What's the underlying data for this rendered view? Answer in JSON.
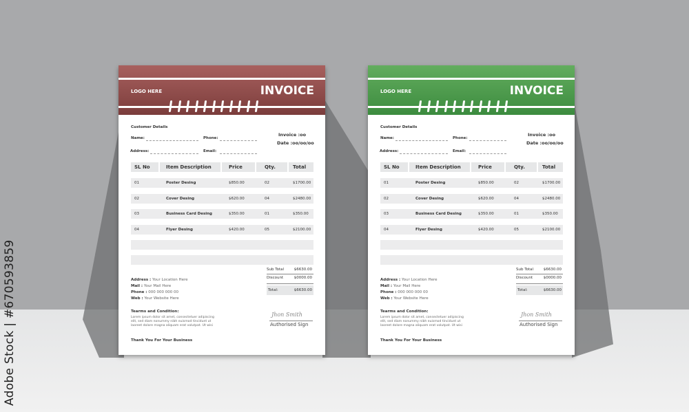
{
  "watermark": "Adobe Stock | #670593859",
  "themes": [
    {
      "name": "red",
      "light": "#a8605e",
      "dark": "#7b3d3c"
    },
    {
      "name": "green",
      "light": "#63ad5e",
      "dark": "#3c8b3f"
    }
  ],
  "invoice": {
    "logo": "LOGO HERE",
    "title": "INVOICE",
    "customer_details": "Customer Details",
    "name_label": "Name:",
    "phone_label": "Phone:",
    "address_label": "Address:",
    "email_label": "Email:",
    "invoice_no": "Invoice :oo",
    "date": "Date :oo/oo/oo",
    "columns": [
      "SL No",
      "Item Description",
      "Price",
      "Qty.",
      "Total"
    ],
    "rows": [
      {
        "sl": "01",
        "item": "Poster Desing",
        "price": "$850.00",
        "qty": "02",
        "total": "$1700.00"
      },
      {
        "sl": "02",
        "item": "Cover Desing",
        "price": "$620.00",
        "qty": "04",
        "total": "$2480.00"
      },
      {
        "sl": "03",
        "item": "Business Card Desing",
        "price": "$350.00",
        "qty": "01",
        "total": "$350.00"
      },
      {
        "sl": "04",
        "item": "Flyer Desing",
        "price": "$420.00",
        "qty": "05",
        "total": "$2100.00"
      }
    ],
    "subtotal_label": "Sub Total",
    "subtotal": "$6630.00",
    "discount_label": "Discount",
    "discount": "$0000.00",
    "total_label": "Total:",
    "total": "$6630.00",
    "contact": {
      "address_label": "Address :",
      "address": "Your Location Here",
      "mail_label": "Mail :",
      "mail": "Your Mail Here",
      "phone_label": "Phone :",
      "phone": "000 000 000 00",
      "web_label": "Web :",
      "web": "Your Website Here"
    },
    "terms_title": "Tearms and Condition:",
    "terms_lines": [
      "Lorem ipsum dolor sit amet, consectetuer adipiscing",
      "elit, sed diam nonummy nibh euismod tincidunt ut",
      "laoreet dolore magna aliquam erat volutpat. Ut wisi"
    ],
    "signature": "Jhon Smith",
    "sign_label": "Authorised Sign",
    "thanks": "Thank You For Your Business"
  }
}
